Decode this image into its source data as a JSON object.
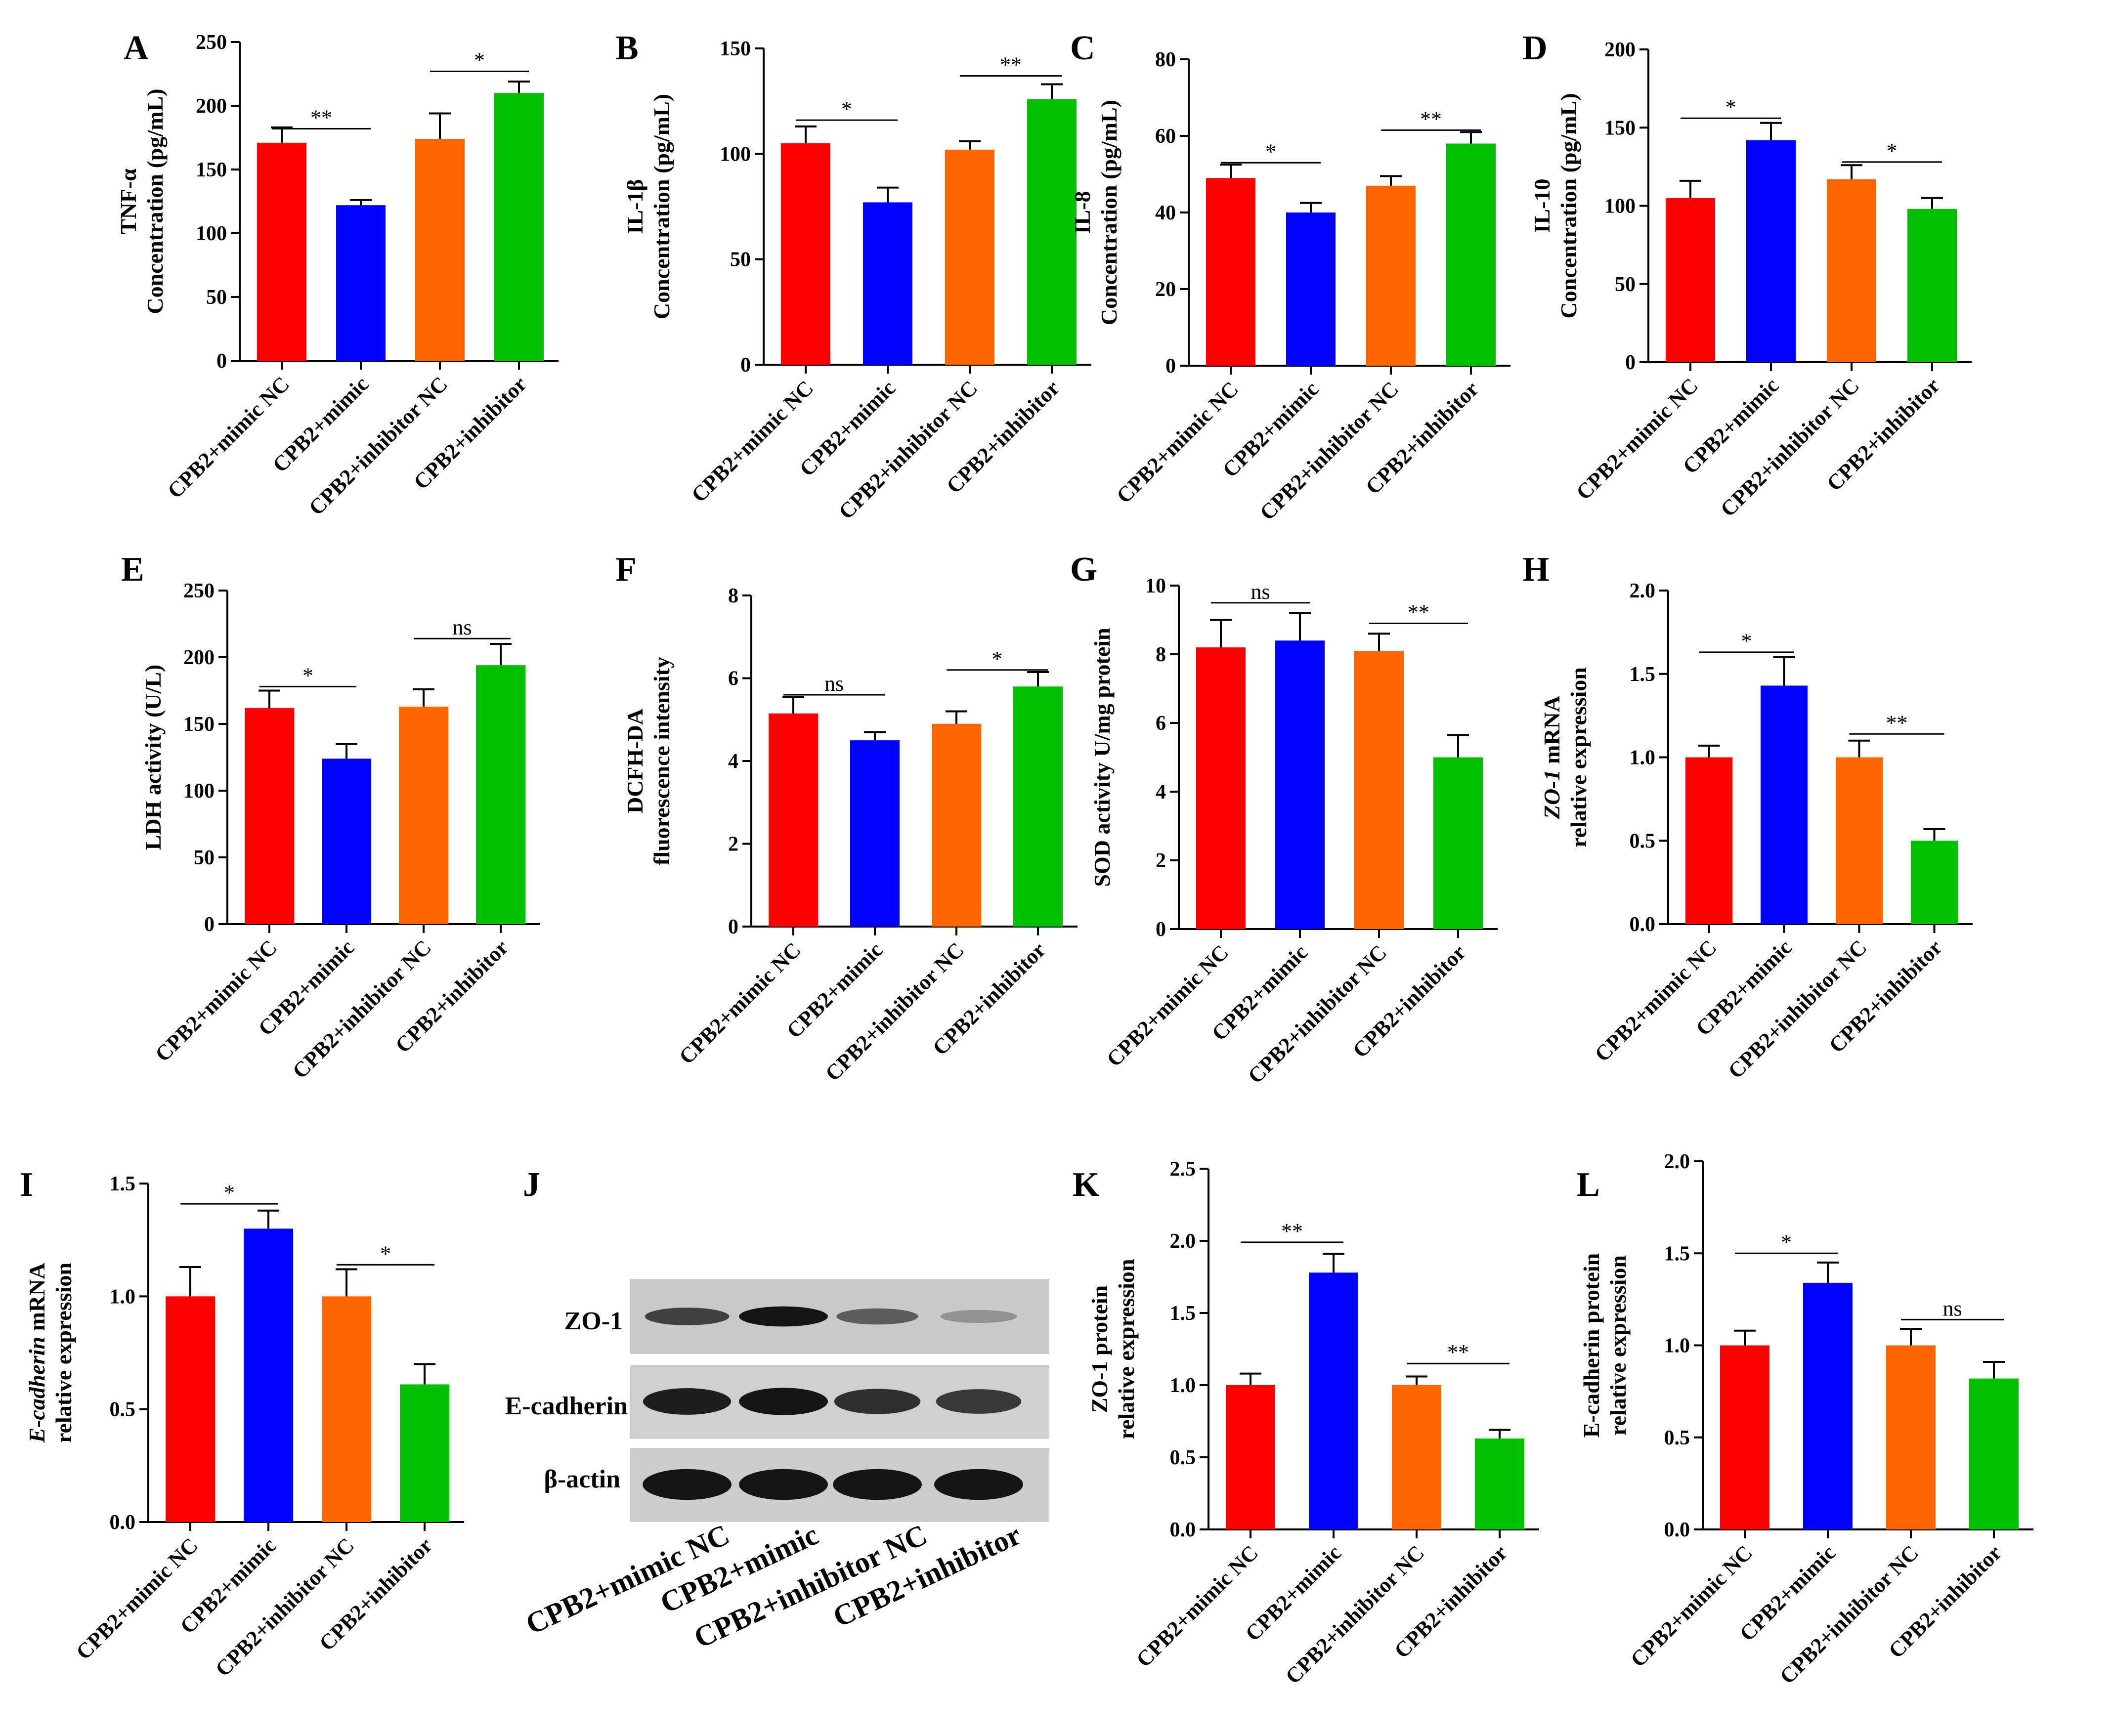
{
  "colors": {
    "mimic_nc": "#ff0000",
    "mimic": "#0000ff",
    "inhibitor_nc": "#ff6600",
    "inhibitor": "#00c000"
  },
  "categories": [
    "CPB2+mimic NC",
    "CPB2+mimic",
    "CPB2+inhibitor NC",
    "CPB2+inhibitor"
  ],
  "chart_data": [
    {
      "id": "A",
      "type": "bar",
      "panel_label": "A",
      "ylabel_lines": [
        "TNF-α",
        "Concentration (pg/mL)"
      ],
      "ylim": [
        0,
        250
      ],
      "yticks": [
        0,
        50,
        100,
        150,
        200,
        250
      ],
      "categories": [
        "CPB2+mimic NC",
        "CPB2+mimic",
        "CPB2+inhibitor NC",
        "CPB2+inhibitor"
      ],
      "values": [
        171,
        122,
        174,
        210
      ],
      "errors": [
        12,
        4,
        20,
        9
      ],
      "comparisons": [
        {
          "from": 0,
          "to": 1,
          "label": "**",
          "y": 182
        },
        {
          "from": 2,
          "to": 3,
          "label": "*",
          "y": 227
        }
      ]
    },
    {
      "id": "B",
      "type": "bar",
      "panel_label": "B",
      "ylabel_lines": [
        "IL-1β",
        "Concentration (pg/mL)"
      ],
      "ylim": [
        0,
        150
      ],
      "yticks": [
        0,
        50,
        100,
        150
      ],
      "categories": [
        "CPB2+mimic NC",
        "CPB2+mimic",
        "CPB2+inhibitor NC",
        "CPB2+inhibitor"
      ],
      "values": [
        105,
        77,
        102,
        126
      ],
      "errors": [
        8,
        7,
        4,
        7
      ],
      "comparisons": [
        {
          "from": 0,
          "to": 1,
          "label": "*",
          "y": 116
        },
        {
          "from": 2,
          "to": 3,
          "label": "**",
          "y": 137
        }
      ]
    },
    {
      "id": "C",
      "type": "bar",
      "panel_label": "C",
      "ylabel_lines": [
        "IL-8",
        "Concentration (pg/mL)"
      ],
      "ylim": [
        0,
        80
      ],
      "yticks": [
        0,
        20,
        40,
        60,
        80
      ],
      "categories": [
        "CPB2+mimic NC",
        "CPB2+mimic",
        "CPB2+inhibitor NC",
        "CPB2+inhibitor"
      ],
      "values": [
        49,
        40,
        47,
        58
      ],
      "errors": [
        3.5,
        2.5,
        2.5,
        3
      ],
      "comparisons": [
        {
          "from": 0,
          "to": 1,
          "label": "*",
          "y": 53
        },
        {
          "from": 2,
          "to": 3,
          "label": "**",
          "y": 61.5
        }
      ]
    },
    {
      "id": "D",
      "type": "bar",
      "panel_label": "D",
      "ylabel_lines": [
        "IL-10",
        "Concentration (pg/mL)"
      ],
      "ylim": [
        0,
        200
      ],
      "yticks": [
        0,
        50,
        100,
        150,
        200
      ],
      "categories": [
        "CPB2+mimic NC",
        "CPB2+mimic",
        "CPB2+inhibitor NC",
        "CPB2+inhibitor"
      ],
      "values": [
        105,
        142,
        117,
        98
      ],
      "errors": [
        11,
        11,
        9,
        7
      ],
      "comparisons": [
        {
          "from": 0,
          "to": 1,
          "label": "*",
          "y": 156
        },
        {
          "from": 2,
          "to": 3,
          "label": "*",
          "y": 128
        }
      ]
    },
    {
      "id": "E",
      "type": "bar",
      "panel_label": "E",
      "ylabel_lines": [
        "LDH activity (U/L)"
      ],
      "ylim": [
        0,
        250
      ],
      "yticks": [
        0,
        50,
        100,
        150,
        200,
        250
      ],
      "categories": [
        "CPB2+mimic NC",
        "CPB2+mimic",
        "CPB2+inhibitor NC",
        "CPB2+inhibitor"
      ],
      "values": [
        162,
        124,
        163,
        194
      ],
      "errors": [
        13,
        11,
        13,
        16
      ],
      "comparisons": [
        {
          "from": 0,
          "to": 1,
          "label": "*",
          "y": 178
        },
        {
          "from": 2,
          "to": 3,
          "label": "ns",
          "y": 214
        }
      ]
    },
    {
      "id": "F",
      "type": "bar",
      "panel_label": "F",
      "ylabel_lines": [
        "DCFH-DA",
        "fluorescence intensity"
      ],
      "ylim": [
        0,
        8
      ],
      "yticks": [
        0,
        2,
        4,
        6,
        8
      ],
      "categories": [
        "CPB2+mimic NC",
        "CPB2+mimic",
        "CPB2+inhibitor NC",
        "CPB2+inhibitor"
      ],
      "values": [
        5.15,
        4.5,
        4.9,
        5.8
      ],
      "errors": [
        0.4,
        0.2,
        0.3,
        0.35
      ],
      "comparisons": [
        {
          "from": 0,
          "to": 1,
          "label": "ns",
          "y": 5.6
        },
        {
          "from": 2,
          "to": 3,
          "label": "*",
          "y": 6.2
        }
      ]
    },
    {
      "id": "G",
      "type": "bar",
      "panel_label": "G",
      "ylabel_lines": [
        "SOD activity U/mg protein"
      ],
      "ylim": [
        0,
        10
      ],
      "yticks": [
        0,
        2,
        4,
        6,
        8,
        10
      ],
      "categories": [
        "CPB2+mimic NC",
        "CPB2+mimic",
        "CPB2+inhibitor NC",
        "CPB2+inhibitor"
      ],
      "values": [
        8.2,
        8.4,
        8.1,
        5.0
      ],
      "errors": [
        0.8,
        0.8,
        0.5,
        0.65
      ],
      "comparisons": [
        {
          "from": 0,
          "to": 1,
          "label": "ns",
          "y": 9.5
        },
        {
          "from": 2,
          "to": 3,
          "label": "**",
          "y": 8.9
        }
      ]
    },
    {
      "id": "H",
      "type": "bar",
      "panel_label": "H",
      "ylabel_lines": [
        "ZO-1 mRNA",
        "relative expression"
      ],
      "ylabel_italic": "ZO-1",
      "ylim": [
        0,
        2.0
      ],
      "yticks": [
        0.0,
        0.5,
        1.0,
        1.5,
        2.0
      ],
      "categories": [
        "CPB2+mimic NC",
        "CPB2+mimic",
        "CPB2+inhibitor NC",
        "CPB2+inhibitor"
      ],
      "values": [
        1.0,
        1.43,
        1.0,
        0.5
      ],
      "errors": [
        0.07,
        0.17,
        0.1,
        0.07
      ],
      "comparisons": [
        {
          "from": 0,
          "to": 1,
          "label": "*",
          "y": 1.63
        },
        {
          "from": 2,
          "to": 3,
          "label": "**",
          "y": 1.14
        }
      ]
    },
    {
      "id": "I",
      "type": "bar",
      "panel_label": "I",
      "ylabel_lines": [
        "E-cadherin mRNA",
        "relative expression"
      ],
      "ylabel_italic": "E-cadherin",
      "ylim": [
        0,
        1.5
      ],
      "yticks": [
        0.0,
        0.5,
        1.0,
        1.5
      ],
      "categories": [
        "CPB2+mimic NC",
        "CPB2+mimic",
        "CPB2+inhibitor NC",
        "CPB2+inhibitor"
      ],
      "values": [
        1.0,
        1.3,
        1.0,
        0.61
      ],
      "errors": [
        0.13,
        0.08,
        0.12,
        0.09
      ],
      "comparisons": [
        {
          "from": 0,
          "to": 1,
          "label": "*",
          "y": 1.41
        },
        {
          "from": 2,
          "to": 3,
          "label": "*",
          "y": 1.14
        }
      ]
    },
    {
      "id": "K",
      "type": "bar",
      "panel_label": "K",
      "ylabel_lines": [
        "ZO-1 protein",
        "relative expression"
      ],
      "ylim": [
        0,
        2.5
      ],
      "yticks": [
        0.0,
        0.5,
        1.0,
        1.5,
        2.0,
        2.5
      ],
      "categories": [
        "CPB2+mimic NC",
        "CPB2+mimic",
        "CPB2+inhibitor NC",
        "CPB2+inhibitor"
      ],
      "values": [
        1.0,
        1.78,
        1.0,
        0.63
      ],
      "errors": [
        0.08,
        0.13,
        0.06,
        0.06
      ],
      "comparisons": [
        {
          "from": 0,
          "to": 1,
          "label": "**",
          "y": 1.99
        },
        {
          "from": 2,
          "to": 3,
          "label": "**",
          "y": 1.15
        }
      ]
    },
    {
      "id": "L",
      "type": "bar",
      "panel_label": "L",
      "ylabel_lines": [
        "E-cadherin protein",
        "relative expression"
      ],
      "ylim": [
        0,
        2.0
      ],
      "yticks": [
        0.0,
        0.5,
        1.0,
        1.5,
        2.0
      ],
      "categories": [
        "CPB2+mimic NC",
        "CPB2+mimic",
        "CPB2+inhibitor NC",
        "CPB2+inhibitor"
      ],
      "values": [
        1.0,
        1.34,
        1.0,
        0.82
      ],
      "errors": [
        0.08,
        0.11,
        0.09,
        0.09
      ],
      "comparisons": [
        {
          "from": 0,
          "to": 1,
          "label": "*",
          "y": 1.5
        },
        {
          "from": 2,
          "to": 3,
          "label": "ns",
          "y": 1.14
        }
      ]
    }
  ],
  "western_blot": {
    "panel_label": "J",
    "rows": [
      "ZO-1",
      "E-cadherin",
      "β-actin"
    ],
    "lanes": [
      "CPB2+mimic NC",
      "CPB2+mimic",
      "CPB2+inhibitor NC",
      "CPB2+inhibitor"
    ],
    "band_intensity": [
      [
        0.75,
        1.0,
        0.6,
        0.3
      ],
      [
        0.95,
        1.0,
        0.85,
        0.8
      ],
      [
        1.0,
        1.0,
        1.0,
        1.0
      ]
    ]
  }
}
